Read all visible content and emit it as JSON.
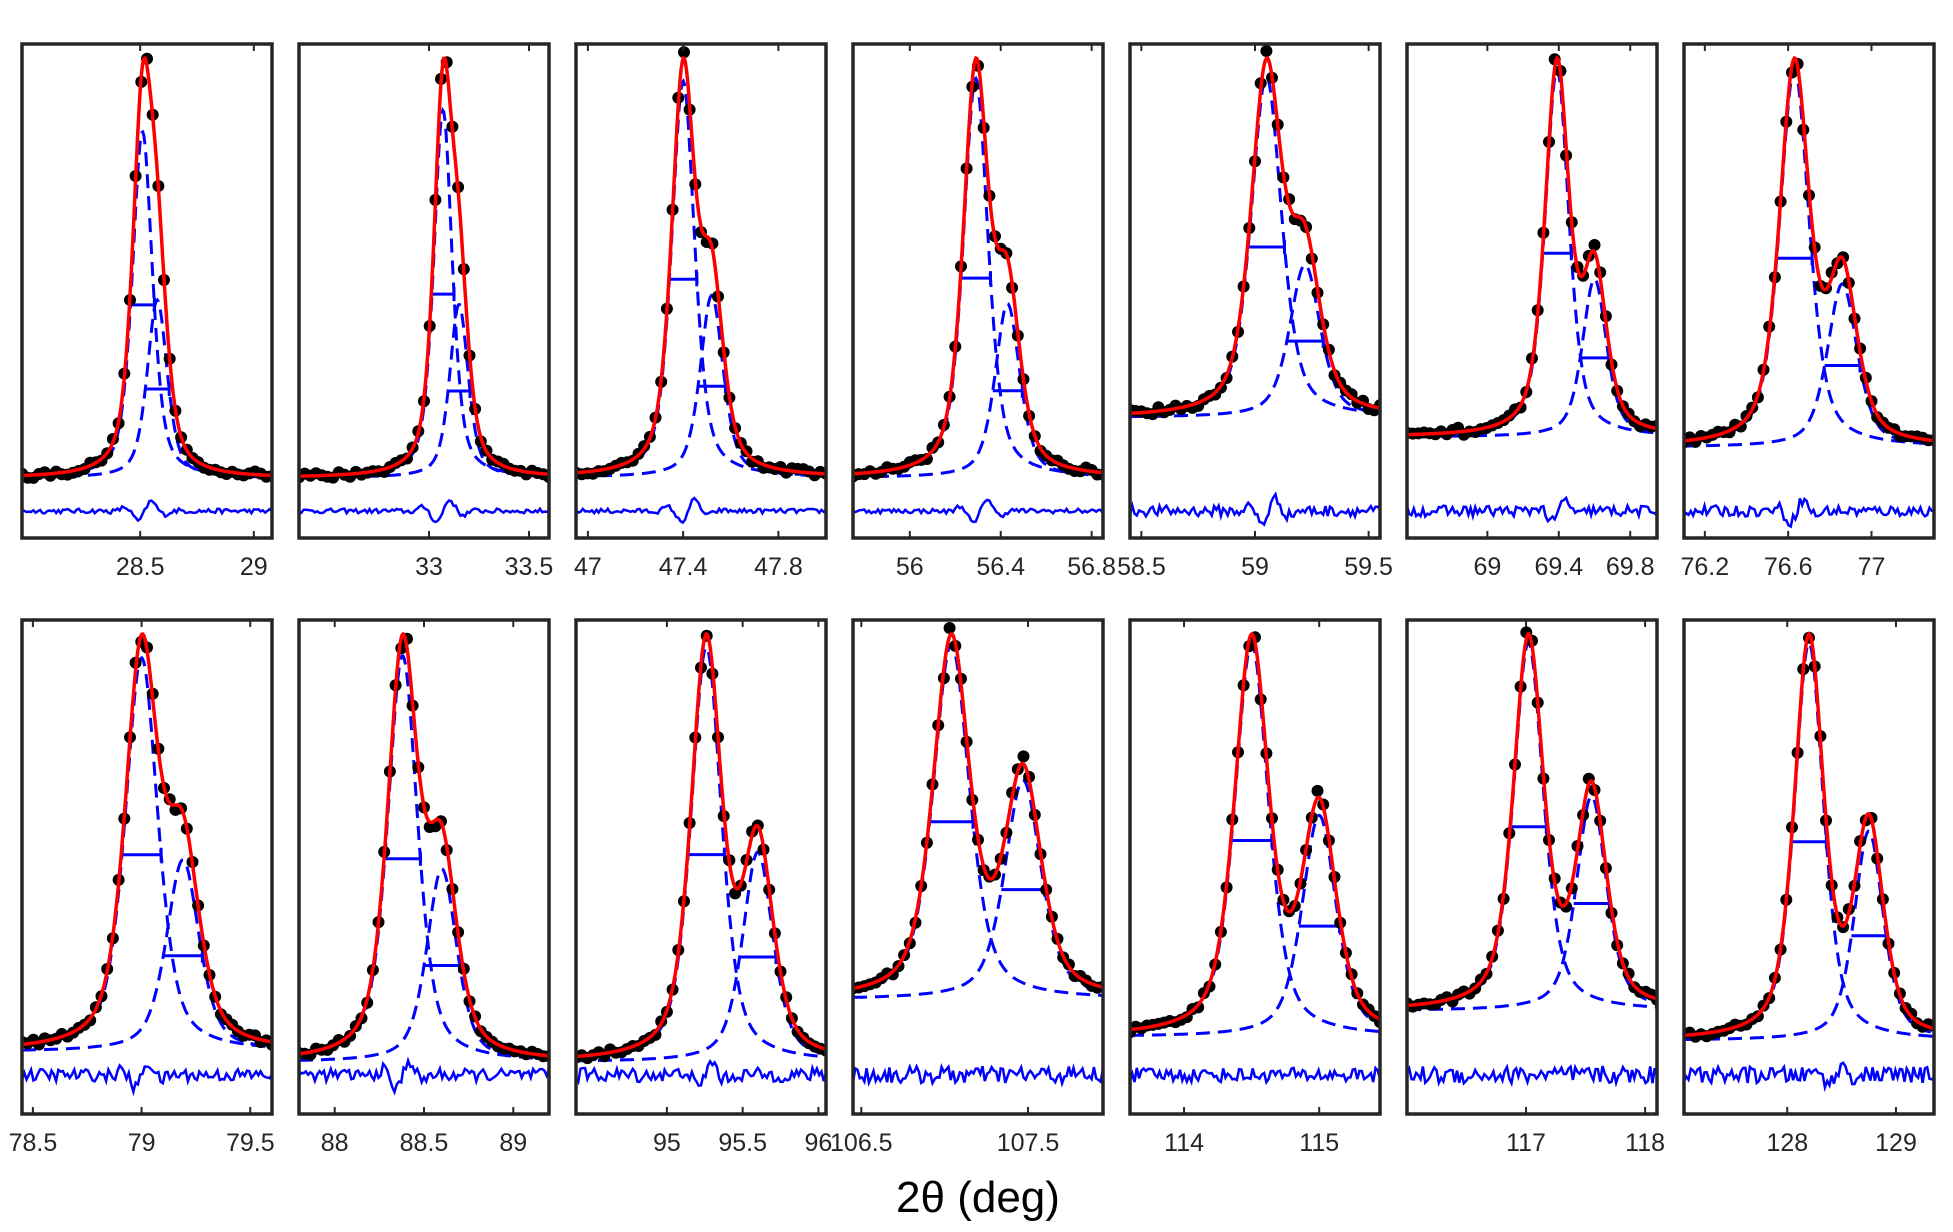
{
  "chart_data": {
    "type": "scatter",
    "title": "",
    "xlabel": "2θ (deg)",
    "ylabel": "",
    "grid": false,
    "legend": "none",
    "series_styles": {
      "observed": "black filled circles",
      "fit": "red solid line",
      "components": "blue dashed lines",
      "fwhm_markers": "blue horizontal bars",
      "residual": "blue solid line"
    },
    "colors": {
      "observed": "#000000",
      "fit": "#ff0000",
      "component": "#0000ff",
      "residual": "#0000ff",
      "frame": "#262626",
      "text": "#262626"
    },
    "panels": [
      {
        "name": "peak-28-5",
        "row": 1,
        "col": 1,
        "xlim": [
          27.98,
          29.08
        ],
        "ticks": [
          28.5,
          29
        ],
        "tick_labels": [
          "28.5",
          "29"
        ],
        "baseline": 0.02,
        "components": [
          {
            "center": 28.51,
            "height": 0.7,
            "fwhm": 0.105
          },
          {
            "center": 28.575,
            "height": 0.36,
            "fwhm": 0.105
          }
        ],
        "residual_noise": 0.15,
        "residual_wiggles": [
          {
            "center": 28.52,
            "amp": 0.7
          }
        ]
      },
      {
        "name": "peak-33",
        "row": 1,
        "col": 2,
        "xlim": [
          32.35,
          33.6
        ],
        "ticks": [
          33,
          33.5
        ],
        "tick_labels": [
          "33",
          "33.5"
        ],
        "baseline": 0.02,
        "components": [
          {
            "center": 33.07,
            "height": 0.72,
            "fwhm": 0.11
          },
          {
            "center": 33.15,
            "height": 0.34,
            "fwhm": 0.11
          }
        ],
        "residual_noise": 0.15,
        "residual_wiggles": [
          {
            "center": 33.07,
            "amp": 0.8
          }
        ]
      },
      {
        "name": "peak-47-4",
        "row": 1,
        "col": 3,
        "xlim": [
          46.95,
          48.0
        ],
        "ticks": [
          47,
          47.4,
          47.8
        ],
        "tick_labels": [
          "47",
          "47.4",
          "47.8"
        ],
        "baseline": 0.02,
        "components": [
          {
            "center": 47.4,
            "height": 0.74,
            "fwhm": 0.115
          },
          {
            "center": 47.52,
            "height": 0.34,
            "fwhm": 0.115
          }
        ],
        "residual_noise": 0.15,
        "residual_wiggles": [
          {
            "center": 47.42,
            "amp": 0.8
          }
        ]
      },
      {
        "name": "peak-56-4",
        "row": 1,
        "col": 4,
        "xlim": [
          55.75,
          56.85
        ],
        "ticks": [
          56,
          56.4,
          56.8
        ],
        "tick_labels": [
          "56",
          "56.4",
          "56.8"
        ],
        "baseline": 0.02,
        "components": [
          {
            "center": 56.29,
            "height": 0.78,
            "fwhm": 0.13
          },
          {
            "center": 56.43,
            "height": 0.34,
            "fwhm": 0.13
          }
        ],
        "residual_noise": 0.15,
        "residual_wiggles": [
          {
            "center": 56.31,
            "amp": 0.9
          }
        ]
      },
      {
        "name": "peak-59",
        "row": 1,
        "col": 5,
        "xlim": [
          58.45,
          59.55
        ],
        "ticks": [
          58.5,
          59,
          59.5
        ],
        "tick_labels": [
          "58.5",
          "59",
          "59.5"
        ],
        "baseline": 0.12,
        "components": [
          {
            "center": 59.05,
            "height": 0.58,
            "fwhm": 0.16
          },
          {
            "center": 59.22,
            "height": 0.26,
            "fwhm": 0.16
          }
        ],
        "residual_noise": 0.35,
        "residual_wiggles": [
          {
            "center": 59.06,
            "amp": 0.9
          }
        ]
      },
      {
        "name": "peak-69-4",
        "row": 1,
        "col": 6,
        "xlim": [
          68.55,
          69.95
        ],
        "ticks": [
          69,
          69.4,
          69.8
        ],
        "tick_labels": [
          "69",
          "69.4",
          "69.8"
        ],
        "baseline": 0.1,
        "components": [
          {
            "center": 69.39,
            "height": 0.72,
            "fwhm": 0.16
          },
          {
            "center": 69.6,
            "height": 0.31,
            "fwhm": 0.16
          }
        ],
        "residual_noise": 0.35,
        "residual_wiggles": [
          {
            "center": 69.4,
            "amp": 0.8
          }
        ]
      },
      {
        "name": "peak-76-6",
        "row": 1,
        "col": 7,
        "xlim": [
          76.1,
          77.3
        ],
        "ticks": [
          76.2,
          76.6,
          77
        ],
        "tick_labels": [
          "76.2",
          "76.6",
          "77"
        ],
        "baseline": 0.08,
        "components": [
          {
            "center": 76.63,
            "height": 0.74,
            "fwhm": 0.17
          },
          {
            "center": 76.86,
            "height": 0.32,
            "fwhm": 0.17
          }
        ],
        "residual_noise": 0.35,
        "residual_wiggles": [
          {
            "center": 76.64,
            "amp": 0.8
          }
        ]
      },
      {
        "name": "peak-79",
        "row": 2,
        "col": 1,
        "xlim": [
          78.45,
          79.6
        ],
        "ticks": [
          78.5,
          79,
          79.5
        ],
        "tick_labels": [
          "78.5",
          "79",
          "79.5"
        ],
        "baseline": 0.02,
        "components": [
          {
            "center": 79.0,
            "height": 0.76,
            "fwhm": 0.18
          },
          {
            "center": 79.19,
            "height": 0.37,
            "fwhm": 0.18
          }
        ],
        "residual_noise": 0.35,
        "residual_wiggles": [
          {
            "center": 79.0,
            "amp": 0.8
          }
        ]
      },
      {
        "name": "peak-88-5",
        "row": 2,
        "col": 2,
        "xlim": [
          87.8,
          89.2
        ],
        "ticks": [
          88,
          88.5,
          89
        ],
        "tick_labels": [
          "88",
          "88.5",
          "89"
        ],
        "baseline": 0.0,
        "components": [
          {
            "center": 88.38,
            "height": 0.8,
            "fwhm": 0.2
          },
          {
            "center": 88.6,
            "height": 0.38,
            "fwhm": 0.2
          }
        ],
        "residual_noise": 0.35,
        "residual_wiggles": [
          {
            "center": 88.38,
            "amp": 0.9
          }
        ]
      },
      {
        "name": "peak-95-5",
        "row": 2,
        "col": 3,
        "xlim": [
          94.4,
          96.05
        ],
        "ticks": [
          95,
          95.5,
          96
        ],
        "tick_labels": [
          "95",
          "95.5",
          "96"
        ],
        "baseline": 0.0,
        "components": [
          {
            "center": 95.26,
            "height": 0.79,
            "fwhm": 0.24
          },
          {
            "center": 95.6,
            "height": 0.4,
            "fwhm": 0.24
          }
        ],
        "residual_noise": 0.4,
        "residual_wiggles": [
          {
            "center": 95.25,
            "amp": 0.8
          }
        ]
      },
      {
        "name": "peak-107-5",
        "row": 2,
        "col": 4,
        "xlim": [
          106.45,
          107.95
        ],
        "ticks": [
          106.5,
          107.5
        ],
        "tick_labels": [
          "106.5",
          "107.5"
        ],
        "baseline": 0.12,
        "components": [
          {
            "center": 107.04,
            "height": 0.68,
            "fwhm": 0.26
          },
          {
            "center": 107.47,
            "height": 0.42,
            "fwhm": 0.26
          }
        ],
        "residual_noise": 0.5,
        "residual_wiggles": []
      },
      {
        "name": "peak-115",
        "row": 2,
        "col": 5,
        "xlim": [
          113.6,
          115.45
        ],
        "ticks": [
          114,
          115
        ],
        "tick_labels": [
          "114",
          "115"
        ],
        "baseline": 0.05,
        "components": [
          {
            "center": 114.5,
            "height": 0.78,
            "fwhm": 0.3
          },
          {
            "center": 115.0,
            "height": 0.44,
            "fwhm": 0.3
          }
        ],
        "residual_noise": 0.4,
        "residual_wiggles": []
      },
      {
        "name": "peak-117-5",
        "row": 2,
        "col": 6,
        "xlim": [
          116.0,
          118.1
        ],
        "ticks": [
          117,
          118
        ],
        "tick_labels": [
          "117",
          "118"
        ],
        "baseline": 0.1,
        "components": [
          {
            "center": 117.02,
            "height": 0.72,
            "fwhm": 0.3
          },
          {
            "center": 117.55,
            "height": 0.42,
            "fwhm": 0.3
          }
        ],
        "residual_noise": 0.5,
        "residual_wiggles": []
      },
      {
        "name": "peak-128-5",
        "row": 2,
        "col": 7,
        "xlim": [
          127.05,
          129.35
        ],
        "ticks": [
          128,
          129
        ],
        "tick_labels": [
          "128",
          "129"
        ],
        "baseline": 0.04,
        "components": [
          {
            "center": 128.2,
            "height": 0.74,
            "fwhm": 0.32
          },
          {
            "center": 128.75,
            "height": 0.39,
            "fwhm": 0.32
          }
        ],
        "residual_noise": 0.45,
        "residual_wiggles": [
          {
            "center": 128.45,
            "amp": 0.5
          }
        ]
      }
    ]
  }
}
